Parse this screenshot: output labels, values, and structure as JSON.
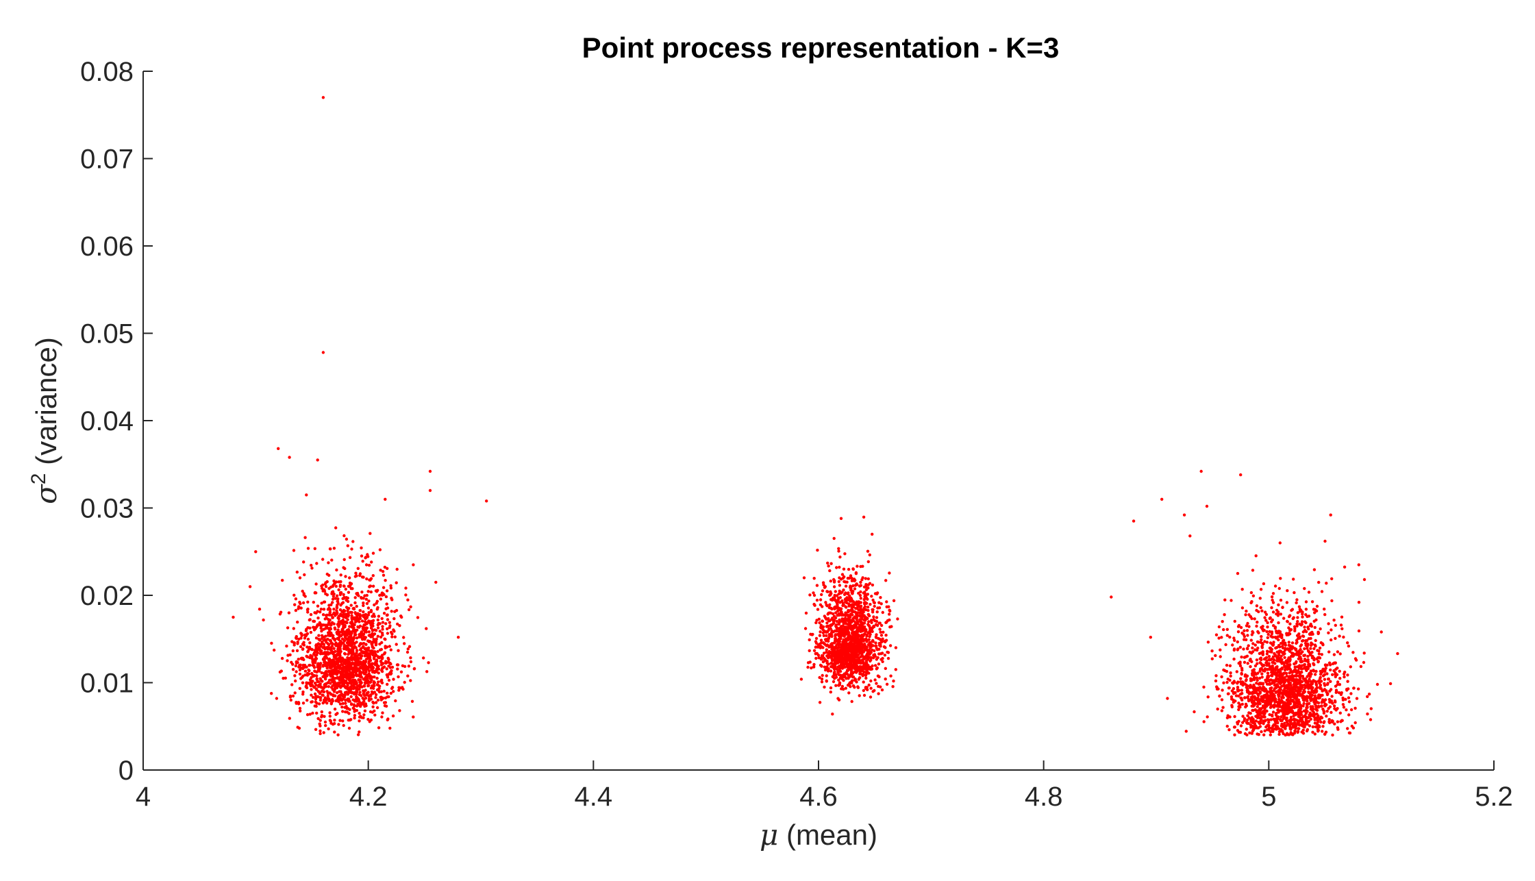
{
  "chart_data": {
    "type": "scatter",
    "title": "Point process representation - K=3",
    "xlabel": "(mean)",
    "xlabel_symbol": "μ",
    "ylabel": "(variance)",
    "ylabel_symbol": "σ",
    "ylabel_exponent": "2",
    "xlim": [
      4,
      5.2
    ],
    "ylim": [
      0,
      0.08
    ],
    "xticks": [
      4,
      4.2,
      4.4,
      4.6,
      4.8,
      5,
      5.2
    ],
    "xtick_labels": [
      "4",
      "4.2",
      "4.4",
      "4.6",
      "4.8",
      "5",
      "5.2"
    ],
    "yticks": [
      0,
      0.01,
      0.02,
      0.03,
      0.04,
      0.05,
      0.06,
      0.07,
      0.08
    ],
    "ytick_labels": [
      "0",
      "0.01",
      "0.02",
      "0.03",
      "0.04",
      "0.05",
      "0.06",
      "0.07",
      "0.08"
    ],
    "grid": false,
    "marker_color": "#ff0000",
    "axis_color": "#262626",
    "clusters": [
      {
        "center": [
          4.18,
          0.0125
        ],
        "std": [
          0.022,
          0.0038
        ],
        "count": 2000
      },
      {
        "center": [
          4.628,
          0.0145
        ],
        "std": [
          0.014,
          0.0028
        ],
        "count": 1500
      },
      {
        "center": [
          5.015,
          0.0095
        ],
        "std": [
          0.026,
          0.0035
        ],
        "count": 1900
      }
    ],
    "outliers": [
      [
        4.16,
        0.077
      ],
      [
        4.16,
        0.0478
      ],
      [
        4.12,
        0.0368
      ],
      [
        4.155,
        0.0355
      ],
      [
        4.255,
        0.0342
      ],
      [
        4.255,
        0.032
      ],
      [
        4.305,
        0.0308
      ],
      [
        4.13,
        0.0358
      ],
      [
        4.145,
        0.0315
      ],
      [
        4.215,
        0.031
      ],
      [
        4.08,
        0.0175
      ],
      [
        4.28,
        0.0152
      ],
      [
        4.095,
        0.021
      ],
      [
        4.24,
        0.0235
      ],
      [
        4.26,
        0.0215
      ],
      [
        4.1,
        0.025
      ],
      [
        4.86,
        0.0198
      ],
      [
        4.88,
        0.0285
      ],
      [
        4.895,
        0.0152
      ],
      [
        4.905,
        0.031
      ],
      [
        4.94,
        0.0342
      ],
      [
        4.975,
        0.0338
      ],
      [
        4.945,
        0.0302
      ],
      [
        4.925,
        0.0292
      ],
      [
        5.1,
        0.0158
      ],
      [
        5.085,
        0.0218
      ],
      [
        5.08,
        0.0235
      ],
      [
        5.055,
        0.0292
      ],
      [
        5.05,
        0.0262
      ],
      [
        4.93,
        0.0268
      ],
      [
        5.01,
        0.026
      ],
      [
        4.91,
        0.0082
      ]
    ]
  }
}
